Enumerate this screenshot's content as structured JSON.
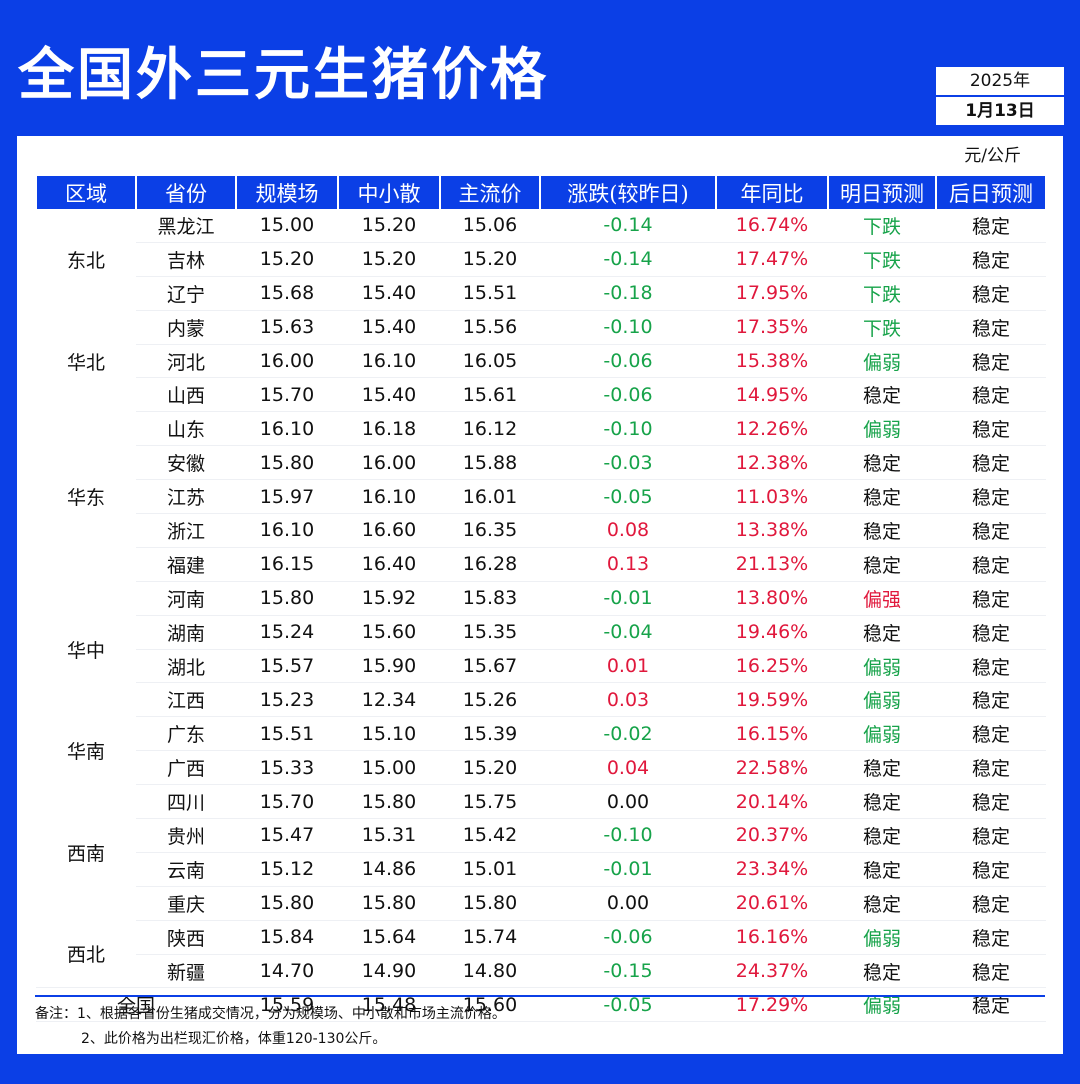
{
  "title": "全国外三元生猪价格",
  "date": {
    "year": "2025年",
    "month_day": "1月13日"
  },
  "unit": "元/公斤",
  "headers": [
    "区域",
    "省份",
    "规模场",
    "中小散",
    "主流价",
    "涨跌(较昨日)",
    "年同比",
    "明日预测",
    "后日预测"
  ],
  "regions": [
    {
      "name": "东北",
      "rows": [
        [
          "黑龙江",
          "15.00",
          "15.20",
          "15.06",
          "-0.14",
          "16.74%",
          "下跌",
          "稳定"
        ],
        [
          "吉林",
          "15.20",
          "15.20",
          "15.20",
          "-0.14",
          "17.47%",
          "下跌",
          "稳定"
        ],
        [
          "辽宁",
          "15.68",
          "15.40",
          "15.51",
          "-0.18",
          "17.95%",
          "下跌",
          "稳定"
        ]
      ]
    },
    {
      "name": "华北",
      "rows": [
        [
          "内蒙",
          "15.63",
          "15.40",
          "15.56",
          "-0.10",
          "17.35%",
          "下跌",
          "稳定"
        ],
        [
          "河北",
          "16.00",
          "16.10",
          "16.05",
          "-0.06",
          "15.38%",
          "偏弱",
          "稳定"
        ],
        [
          "山西",
          "15.70",
          "15.40",
          "15.61",
          "-0.06",
          "14.95%",
          "稳定",
          "稳定"
        ]
      ]
    },
    {
      "name": "华东",
      "rows": [
        [
          "山东",
          "16.10",
          "16.18",
          "16.12",
          "-0.10",
          "12.26%",
          "偏弱",
          "稳定"
        ],
        [
          "安徽",
          "15.80",
          "16.00",
          "15.88",
          "-0.03",
          "12.38%",
          "稳定",
          "稳定"
        ],
        [
          "江苏",
          "15.97",
          "16.10",
          "16.01",
          "-0.05",
          "11.03%",
          "稳定",
          "稳定"
        ],
        [
          "浙江",
          "16.10",
          "16.60",
          "16.35",
          "0.08",
          "13.38%",
          "稳定",
          "稳定"
        ],
        [
          "福建",
          "16.15",
          "16.40",
          "16.28",
          "0.13",
          "21.13%",
          "稳定",
          "稳定"
        ]
      ]
    },
    {
      "name": "华中",
      "rows": [
        [
          "河南",
          "15.80",
          "15.92",
          "15.83",
          "-0.01",
          "13.80%",
          "偏强",
          "稳定"
        ],
        [
          "湖南",
          "15.24",
          "15.60",
          "15.35",
          "-0.04",
          "19.46%",
          "稳定",
          "稳定"
        ],
        [
          "湖北",
          "15.57",
          "15.90",
          "15.67",
          "0.01",
          "16.25%",
          "偏弱",
          "稳定"
        ],
        [
          "江西",
          "15.23",
          "12.34",
          "15.26",
          "0.03",
          "19.59%",
          "偏弱",
          "稳定"
        ]
      ]
    },
    {
      "name": "华南",
      "rows": [
        [
          "广东",
          "15.51",
          "15.10",
          "15.39",
          "-0.02",
          "16.15%",
          "偏弱",
          "稳定"
        ],
        [
          "广西",
          "15.33",
          "15.00",
          "15.20",
          "0.04",
          "22.58%",
          "稳定",
          "稳定"
        ]
      ]
    },
    {
      "name": "西南",
      "rows": [
        [
          "四川",
          "15.70",
          "15.80",
          "15.75",
          "0.00",
          "20.14%",
          "稳定",
          "稳定"
        ],
        [
          "贵州",
          "15.47",
          "15.31",
          "15.42",
          "-0.10",
          "20.37%",
          "稳定",
          "稳定"
        ],
        [
          "云南",
          "15.12",
          "14.86",
          "15.01",
          "-0.01",
          "23.34%",
          "稳定",
          "稳定"
        ],
        [
          "重庆",
          "15.80",
          "15.80",
          "15.80",
          "0.00",
          "20.61%",
          "稳定",
          "稳定"
        ]
      ]
    },
    {
      "name": "西北",
      "rows": [
        [
          "陕西",
          "15.84",
          "15.64",
          "15.74",
          "-0.06",
          "16.16%",
          "偏弱",
          "稳定"
        ],
        [
          "新疆",
          "14.70",
          "14.90",
          "14.80",
          "-0.15",
          "24.37%",
          "稳定",
          "稳定"
        ]
      ]
    }
  ],
  "national": [
    "全国",
    "15.59",
    "15.48",
    "15.60",
    "-0.05",
    "17.29%",
    "偏弱",
    "稳定"
  ],
  "notes": [
    "备注：1、根据各省份生猪成交情况，分为规模场、中小散和市场主流价格。",
    "2、此价格为出栏现汇价格，体重120-130公斤。"
  ],
  "colors": {
    "brand": "#0B3FE6",
    "down": "#17a34a",
    "up": "#e0183c"
  }
}
